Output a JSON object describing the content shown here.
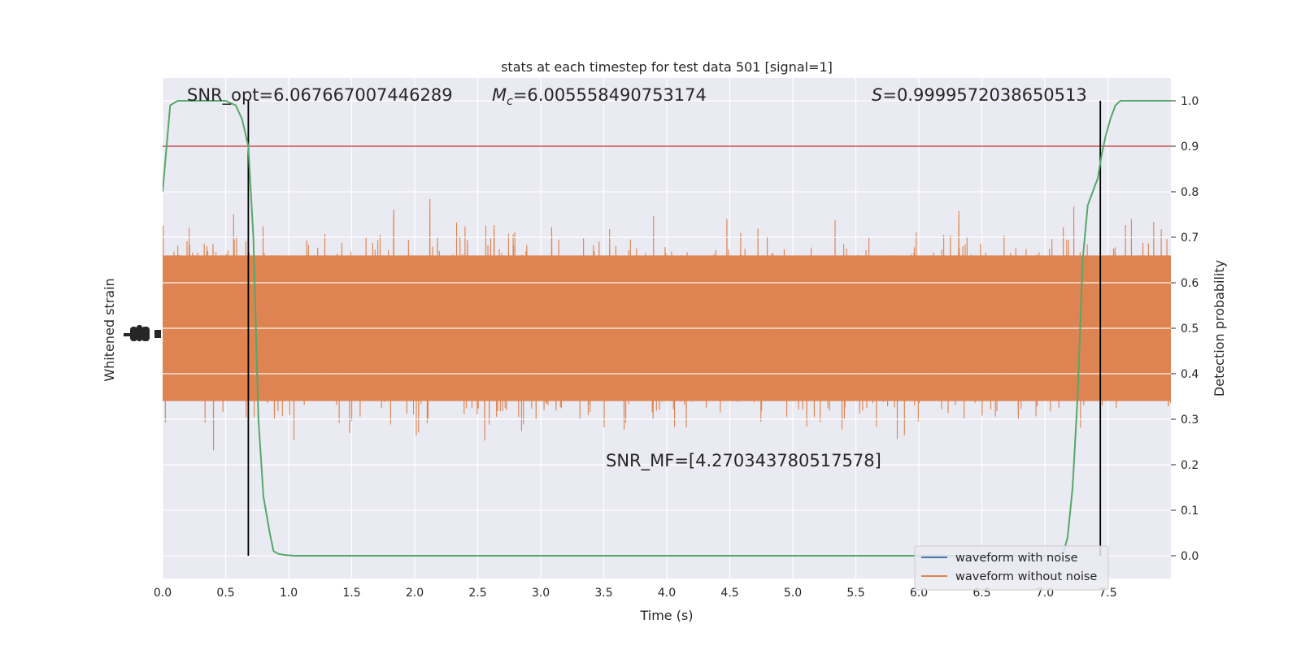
{
  "chart_data": {
    "type": "line",
    "title": "stats at each timestep for test data 501 [signal=1]",
    "xlabel": "Time (s)",
    "ylabel_left": "Whitened strain",
    "ylabel_right": "Detection probability",
    "xlim": [
      0.0,
      8.0
    ],
    "ylim_right": [
      -0.05,
      1.05
    ],
    "x_ticks": [
      "0.0",
      "0.5",
      "1.0",
      "1.5",
      "2.0",
      "2.5",
      "3.0",
      "3.5",
      "4.0",
      "4.5",
      "5.0",
      "5.5",
      "6.0",
      "6.5",
      "7.0",
      "7.5"
    ],
    "y_ticks_right": [
      "0.0",
      "0.1",
      "0.2",
      "0.3",
      "0.4",
      "0.5",
      "0.6",
      "0.7",
      "0.8",
      "0.9",
      "1.0"
    ],
    "grid": true,
    "legend_placement": "bottom-right",
    "annotations": {
      "snr_opt": "SNR_opt=6.067667007446289",
      "mc_symbol": "M",
      "mc_sub": "c",
      "mc_value": "=6.005558490753174",
      "s_symbol": "S",
      "s_value": "=0.9999572038650513",
      "snr_mf": "SNR_MF=[4.270343780517578]"
    },
    "threshold": 0.9,
    "vertical_lines_x": [
      0.68,
      7.44
    ],
    "series": [
      {
        "name": "waveform with noise",
        "color": "#4c72b0"
      },
      {
        "name": "waveform without noise",
        "color": "#dd8452"
      },
      {
        "color": "#55a868",
        "x": [
          0.0,
          0.06,
          0.12,
          0.2,
          0.3,
          0.4,
          0.5,
          0.58,
          0.63,
          0.68,
          0.72,
          0.76,
          0.8,
          0.85,
          0.88,
          0.92,
          0.96,
          1.0,
          1.05,
          1.1,
          1.5,
          2.0,
          3.0,
          4.0,
          5.0,
          6.0,
          6.5,
          7.0,
          7.1,
          7.15,
          7.18,
          7.22,
          7.26,
          7.3,
          7.34,
          7.38,
          7.42,
          7.45,
          7.48,
          7.52,
          7.56,
          7.6,
          7.7,
          8.0
        ],
        "values": [
          0.8,
          0.99,
          1.0,
          1.0,
          1.0,
          1.0,
          1.0,
          0.99,
          0.96,
          0.9,
          0.7,
          0.3,
          0.13,
          0.05,
          0.01,
          0.004,
          0.002,
          0.001,
          0.0,
          0.0,
          0.0,
          0.0,
          0.0,
          0.0,
          0.0,
          0.0,
          0.0,
          0.0,
          0.0,
          0.01,
          0.04,
          0.15,
          0.35,
          0.65,
          0.77,
          0.8,
          0.83,
          0.88,
          0.92,
          0.96,
          0.99,
          1.0,
          1.0,
          1.0
        ]
      }
    ]
  }
}
